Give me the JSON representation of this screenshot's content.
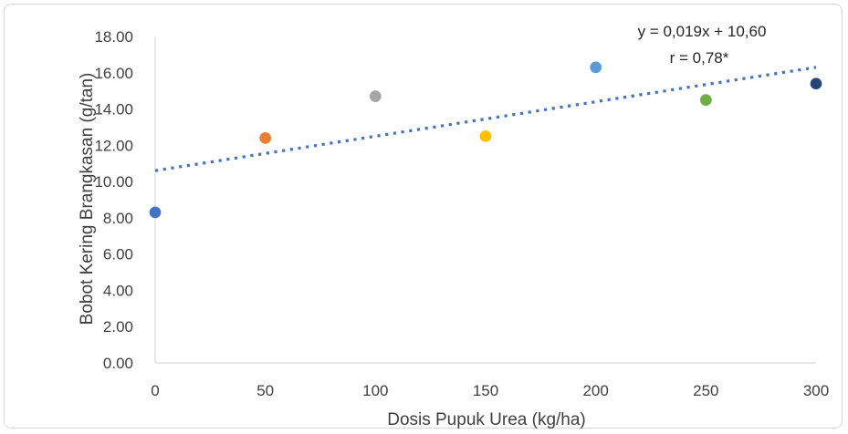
{
  "chart_data": {
    "type": "scatter",
    "title": "",
    "xlabel": "Dosis Pupuk Urea (kg/ha)",
    "ylabel": "Bobot Kering Brangkasan (g/tan)",
    "xlim": [
      0,
      300
    ],
    "ylim": [
      0,
      18
    ],
    "x_ticks": [
      0,
      50,
      100,
      150,
      200,
      250,
      300
    ],
    "x_tick_labels": [
      "0",
      "50",
      "100",
      "150",
      "200",
      "250",
      "300"
    ],
    "y_ticks": [
      0,
      2,
      4,
      6,
      8,
      10,
      12,
      14,
      16,
      18
    ],
    "y_tick_labels": [
      "0.00",
      "2.00",
      "4.00",
      "6.00",
      "8.00",
      "10.00",
      "12.00",
      "14.00",
      "16.00",
      "18.00"
    ],
    "grid": false,
    "legend": "none",
    "points": [
      {
        "x": 0,
        "y": 8.3,
        "color": "#4472c4"
      },
      {
        "x": 50,
        "y": 12.4,
        "color": "#ed7d31"
      },
      {
        "x": 100,
        "y": 14.7,
        "color": "#a5a5a5"
      },
      {
        "x": 150,
        "y": 12.5,
        "color": "#ffc000"
      },
      {
        "x": 200,
        "y": 16.3,
        "color": "#5b9bd5"
      },
      {
        "x": 250,
        "y": 14.5,
        "color": "#70ad47"
      },
      {
        "x": 300,
        "y": 15.4,
        "color": "#264478"
      }
    ],
    "trendline": {
      "type": "linear",
      "slope": 0.019,
      "intercept": 10.6,
      "x_range": [
        0,
        300
      ],
      "style": "dotted",
      "color": "#4472c4"
    },
    "annotations": [
      "y = 0,019x + 10,60",
      "r = 0,78*"
    ]
  }
}
